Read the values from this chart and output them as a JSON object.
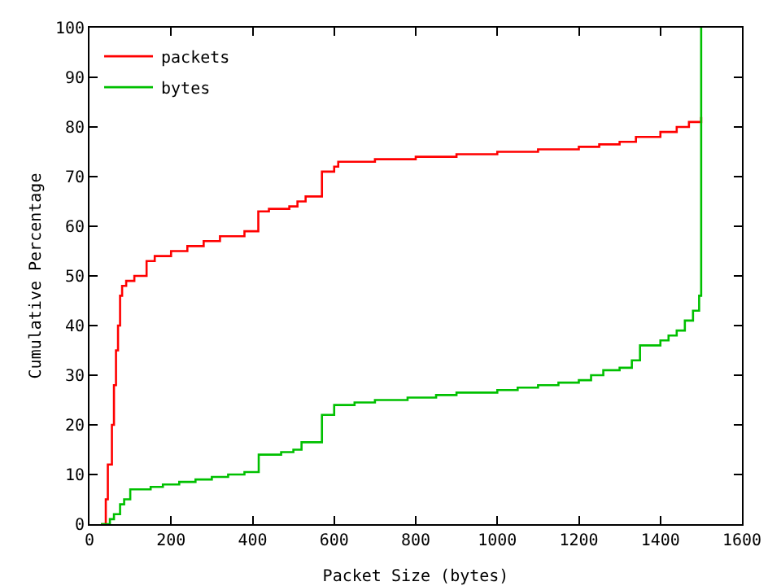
{
  "chart_data": {
    "type": "step",
    "xlabel": "Packet Size (bytes)",
    "ylabel": "Cumulative Percentage",
    "xlim": [
      0,
      1600
    ],
    "ylim": [
      0,
      100
    ],
    "xticks": [
      0,
      200,
      400,
      600,
      800,
      1000,
      1200,
      1400,
      1600
    ],
    "yticks": [
      0,
      10,
      20,
      30,
      40,
      50,
      60,
      70,
      80,
      90,
      100
    ],
    "grid": false,
    "legend": "top left",
    "marker": "none",
    "line_style": "solid",
    "series": [
      {
        "name": "packets",
        "color": "#ff0000",
        "x": [
          28,
          40,
          45,
          55,
          60,
          65,
          70,
          75,
          80,
          90,
          110,
          140,
          160,
          200,
          240,
          280,
          320,
          380,
          414,
          440,
          490,
          510,
          530,
          570,
          600,
          610,
          700,
          800,
          900,
          1000,
          1100,
          1200,
          1250,
          1300,
          1340,
          1400,
          1440,
          1470,
          1500
        ],
        "values": [
          0,
          5,
          12,
          20,
          28,
          35,
          40,
          46,
          48,
          49,
          50,
          53,
          54,
          55,
          56,
          57,
          58,
          59,
          63,
          63.5,
          64,
          65,
          66,
          71,
          72,
          73,
          73.5,
          74,
          74.5,
          75,
          75.5,
          76,
          76.5,
          77,
          78,
          79,
          80,
          81,
          82
        ]
      },
      {
        "name": "bytes",
        "color": "#00c000",
        "x": [
          28,
          40,
          50,
          60,
          75,
          85,
          100,
          150,
          180,
          220,
          260,
          300,
          340,
          380,
          415,
          470,
          500,
          520,
          570,
          600,
          650,
          700,
          780,
          850,
          900,
          1000,
          1050,
          1100,
          1150,
          1200,
          1230,
          1260,
          1300,
          1330,
          1350,
          1400,
          1420,
          1440,
          1460,
          1480,
          1495,
          1500
        ],
        "values": [
          0,
          0,
          1,
          2,
          4,
          5,
          7,
          7.5,
          8,
          8.5,
          9,
          9.5,
          10,
          10.5,
          14,
          14.5,
          15,
          16.5,
          22,
          24,
          24.5,
          25,
          25.5,
          26,
          26.5,
          27,
          27.5,
          28,
          28.5,
          29,
          30,
          31,
          31.5,
          33,
          36,
          37,
          38,
          39,
          41,
          43,
          46,
          100
        ]
      }
    ]
  }
}
